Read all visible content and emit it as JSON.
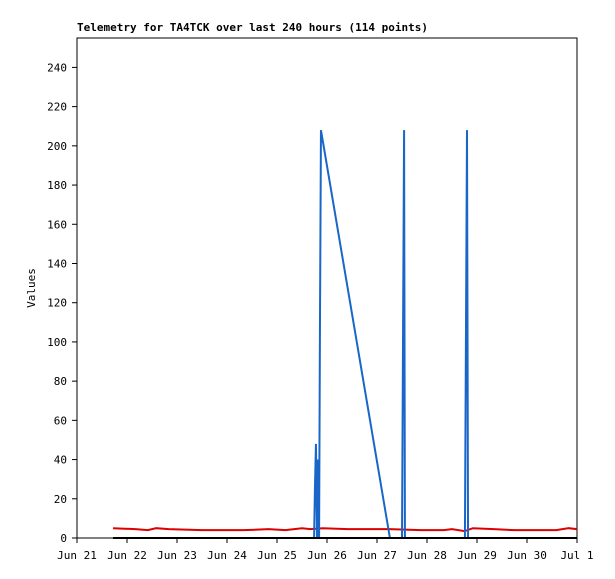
{
  "chart_data": {
    "type": "line",
    "title": "Telemetry for TA4TCK over last 240 hours (114 points)",
    "y_label": "Values",
    "xlim": [
      0,
      240
    ],
    "ylim": [
      0,
      255
    ],
    "xticks": [
      {
        "value": 0,
        "label": "Jun 21"
      },
      {
        "value": 24,
        "label": "Jun 22"
      },
      {
        "value": 48,
        "label": "Jun 23"
      },
      {
        "value": 72,
        "label": "Jun 24"
      },
      {
        "value": 96,
        "label": "Jun 25"
      },
      {
        "value": 120,
        "label": "Jun 26"
      },
      {
        "value": 144,
        "label": "Jun 27"
      },
      {
        "value": 168,
        "label": "Jun 28"
      },
      {
        "value": 192,
        "label": "Jun 29"
      },
      {
        "value": 216,
        "label": "Jun 30"
      },
      {
        "value": 240,
        "label": "Jul 1"
      }
    ],
    "yticks": [
      0,
      20,
      40,
      60,
      80,
      100,
      120,
      140,
      160,
      180,
      200,
      220,
      240
    ],
    "grid": false,
    "series": [
      {
        "color": "#dd0000",
        "x": [
          17.3,
          28,
          34,
          38,
          44,
          60,
          80,
          92,
          100,
          108,
          112,
          118,
          130,
          150,
          165,
          176,
          180,
          186,
          190,
          200,
          210,
          230,
          236,
          240
        ],
        "values": [
          5,
          4.5,
          4,
          5,
          4.5,
          4,
          4,
          4.5,
          4,
          5,
          4.5,
          5,
          4.5,
          4.5,
          4,
          4,
          4.5,
          3.5,
          5,
          4.5,
          4,
          4,
          5,
          4.5
        ]
      },
      {
        "color": "#1a66c8",
        "x": [
          17.3,
          113.8,
          114.2,
          114.7,
          115.2,
          115.7,
          116.2,
          116.6,
          117.1,
          150.2,
          156,
          156.5,
          157,
          157.4,
          186.2,
          186.7,
          187.2,
          187.7,
          240
        ],
        "values": [
          0,
          0,
          25,
          48,
          0,
          40,
          0,
          104,
          208,
          0,
          0,
          104,
          208,
          0,
          0,
          104,
          208,
          0,
          0
        ]
      },
      {
        "color": "#000000",
        "x": [
          17.3,
          240
        ],
        "values": [
          0,
          0
        ]
      }
    ]
  }
}
